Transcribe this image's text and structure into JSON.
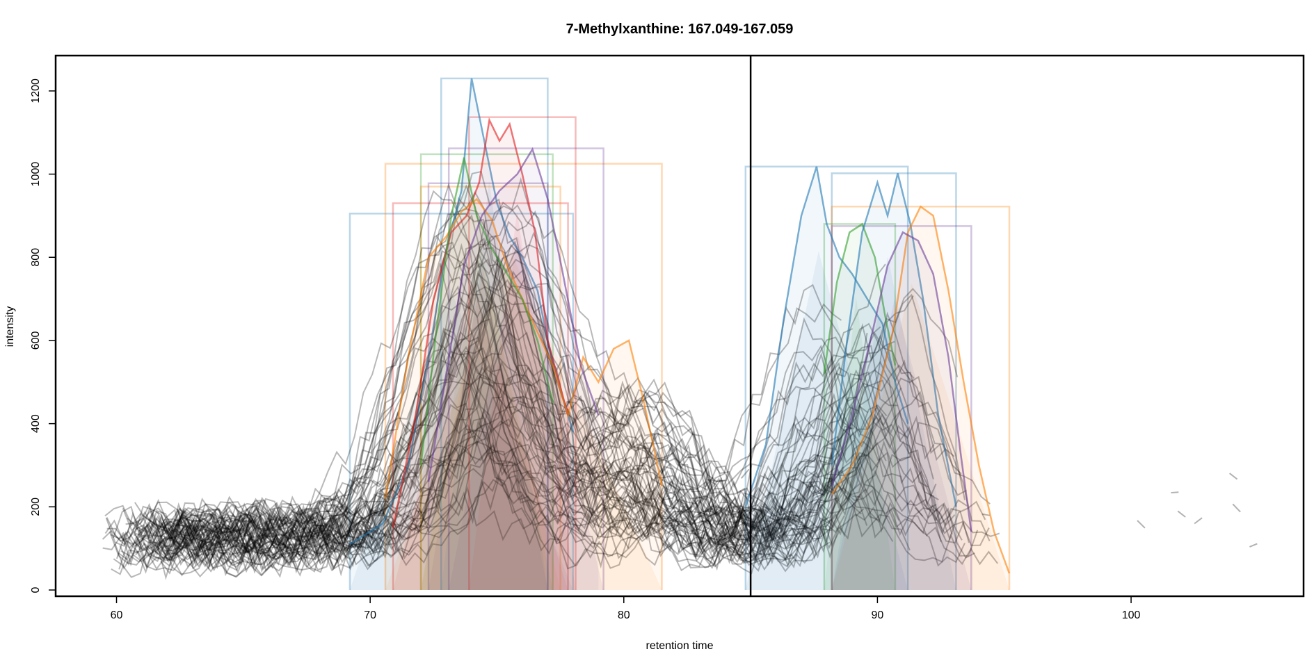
{
  "chart_data": {
    "type": "line",
    "title": "7-Methylxanthine: 167.049-167.059",
    "xlabel": "retention time",
    "ylabel": "intensity",
    "xlim": [
      57.6,
      106.8
    ],
    "ylim": [
      -15,
      1285
    ],
    "x_ticks": [
      60,
      70,
      80,
      90,
      100
    ],
    "x_tick_labels": [
      "60",
      "70",
      "80",
      "90",
      "100"
    ],
    "y_ticks": [
      0,
      200,
      400,
      600,
      800,
      1000,
      1200
    ],
    "y_tick_labels": [
      "0",
      "200",
      "400",
      "600",
      "800",
      "1000",
      "1200"
    ],
    "vline_x": 85.0,
    "grid": false,
    "legend": "none",
    "peak_windows": [
      {
        "xmin": 69.2,
        "xmax": 78.0,
        "ymax": 905,
        "color": "#1F78B4"
      },
      {
        "xmin": 70.6,
        "xmax": 81.5,
        "ymax": 1025,
        "color": "#FF7F00"
      },
      {
        "xmin": 70.9,
        "xmax": 77.8,
        "ymax": 930,
        "color": "#E31A1C"
      },
      {
        "xmin": 72.0,
        "xmax": 77.2,
        "ymax": 1048,
        "color": "#33A02C"
      },
      {
        "xmin": 72.0,
        "xmax": 77.5,
        "ymax": 970,
        "color": "#FF7F00"
      },
      {
        "xmin": 72.3,
        "xmax": 77.0,
        "ymax": 978,
        "color": "#6A3D9A"
      },
      {
        "xmin": 72.8,
        "xmax": 77.0,
        "ymax": 1230,
        "color": "#1F78B4"
      },
      {
        "xmin": 73.1,
        "xmax": 79.2,
        "ymax": 1062,
        "color": "#6A3D9A"
      },
      {
        "xmin": 73.9,
        "xmax": 78.1,
        "ymax": 1137,
        "color": "#E31A1C"
      },
      {
        "xmin": 84.8,
        "xmax": 91.2,
        "ymax": 1018,
        "color": "#1F78B4"
      },
      {
        "xmin": 87.9,
        "xmax": 90.7,
        "ymax": 880,
        "color": "#33A02C"
      },
      {
        "xmin": 88.2,
        "xmax": 93.1,
        "ymax": 1002,
        "color": "#1F78B4"
      },
      {
        "xmin": 88.2,
        "xmax": 95.2,
        "ymax": 922,
        "color": "#FF7F00"
      },
      {
        "xmin": 88.2,
        "xmax": 93.7,
        "ymax": 875,
        "color": "#6A3D9A"
      }
    ],
    "highlighted_traces": [
      {
        "color": "#1F78B4",
        "x": [
          69.2,
          70.5,
          71.5,
          72.3,
          73.0,
          73.6,
          74.0,
          74.5,
          75.0,
          75.5,
          76.0,
          76.6,
          77.0,
          77.5,
          78.0
        ],
        "y": [
          110,
          160,
          300,
          560,
          820,
          960,
          1230,
          1080,
          930,
          850,
          800,
          720,
          600,
          480,
          380
        ]
      },
      {
        "color": "#E31A1C",
        "x": [
          70.9,
          71.8,
          72.5,
          73.2,
          73.8,
          74.3,
          74.7,
          75.1,
          75.5,
          76.0,
          76.5,
          77.0,
          77.8
        ],
        "y": [
          150,
          420,
          700,
          860,
          900,
          980,
          1130,
          1080,
          1120,
          1000,
          860,
          600,
          420
        ]
      },
      {
        "color": "#FF7F00",
        "x": [
          70.6,
          71.5,
          72.3,
          73.0,
          73.6,
          74.2,
          74.8,
          75.4,
          76.0,
          76.6,
          77.2,
          77.8,
          78.4,
          79.0,
          79.6,
          80.2,
          80.8,
          81.5
        ],
        "y": [
          220,
          560,
          800,
          850,
          910,
          940,
          890,
          780,
          700,
          620,
          540,
          420,
          560,
          500,
          580,
          600,
          450,
          250
        ]
      },
      {
        "color": "#33A02C",
        "x": [
          72.0,
          72.6,
          73.2,
          73.7,
          74.2,
          74.8,
          75.4,
          76.0,
          76.6,
          77.2
        ],
        "y": [
          300,
          620,
          900,
          1040,
          900,
          820,
          760,
          700,
          600,
          450
        ]
      },
      {
        "color": "#6A3D9A",
        "x": [
          72.3,
          73.0,
          73.7,
          74.4,
          75.1,
          75.8,
          76.4,
          77.0,
          77.6,
          78.3,
          79.0
        ],
        "y": [
          260,
          520,
          780,
          900,
          960,
          1000,
          1060,
          940,
          760,
          540,
          420
        ]
      },
      {
        "color": "#1F78B4",
        "x": [
          84.8,
          85.6,
          86.3,
          87.0,
          87.6,
          88.0,
          88.5,
          89.0,
          89.6,
          90.2,
          90.7,
          91.2
        ],
        "y": [
          200,
          350,
          650,
          900,
          1018,
          880,
          800,
          760,
          700,
          640,
          500,
          400
        ]
      },
      {
        "color": "#33A02C",
        "x": [
          87.9,
          88.4,
          88.9,
          89.4,
          89.9,
          90.3,
          90.7
        ],
        "y": [
          520,
          740,
          860,
          880,
          800,
          660,
          540
        ]
      },
      {
        "color": "#1F78B4",
        "x": [
          88.2,
          88.8,
          89.4,
          90.0,
          90.4,
          90.8,
          91.3,
          91.8,
          92.4,
          93.1
        ],
        "y": [
          300,
          600,
          860,
          980,
          900,
          1002,
          880,
          700,
          420,
          200
        ]
      },
      {
        "color": "#FF7F00",
        "x": [
          88.2,
          89.0,
          89.8,
          90.6,
          91.2,
          91.7,
          92.2,
          92.8,
          93.4,
          94.0,
          94.6,
          95.2
        ],
        "y": [
          230,
          300,
          420,
          620,
          860,
          922,
          900,
          720,
          500,
          300,
          140,
          40
        ]
      },
      {
        "color": "#6A3D9A",
        "x": [
          88.2,
          89.0,
          89.8,
          90.4,
          91.0,
          91.6,
          92.2,
          92.8,
          93.3,
          93.7
        ],
        "y": [
          250,
          420,
          620,
          780,
          860,
          840,
          760,
          560,
          320,
          140
        ]
      }
    ],
    "background_trace_count": 70
  }
}
